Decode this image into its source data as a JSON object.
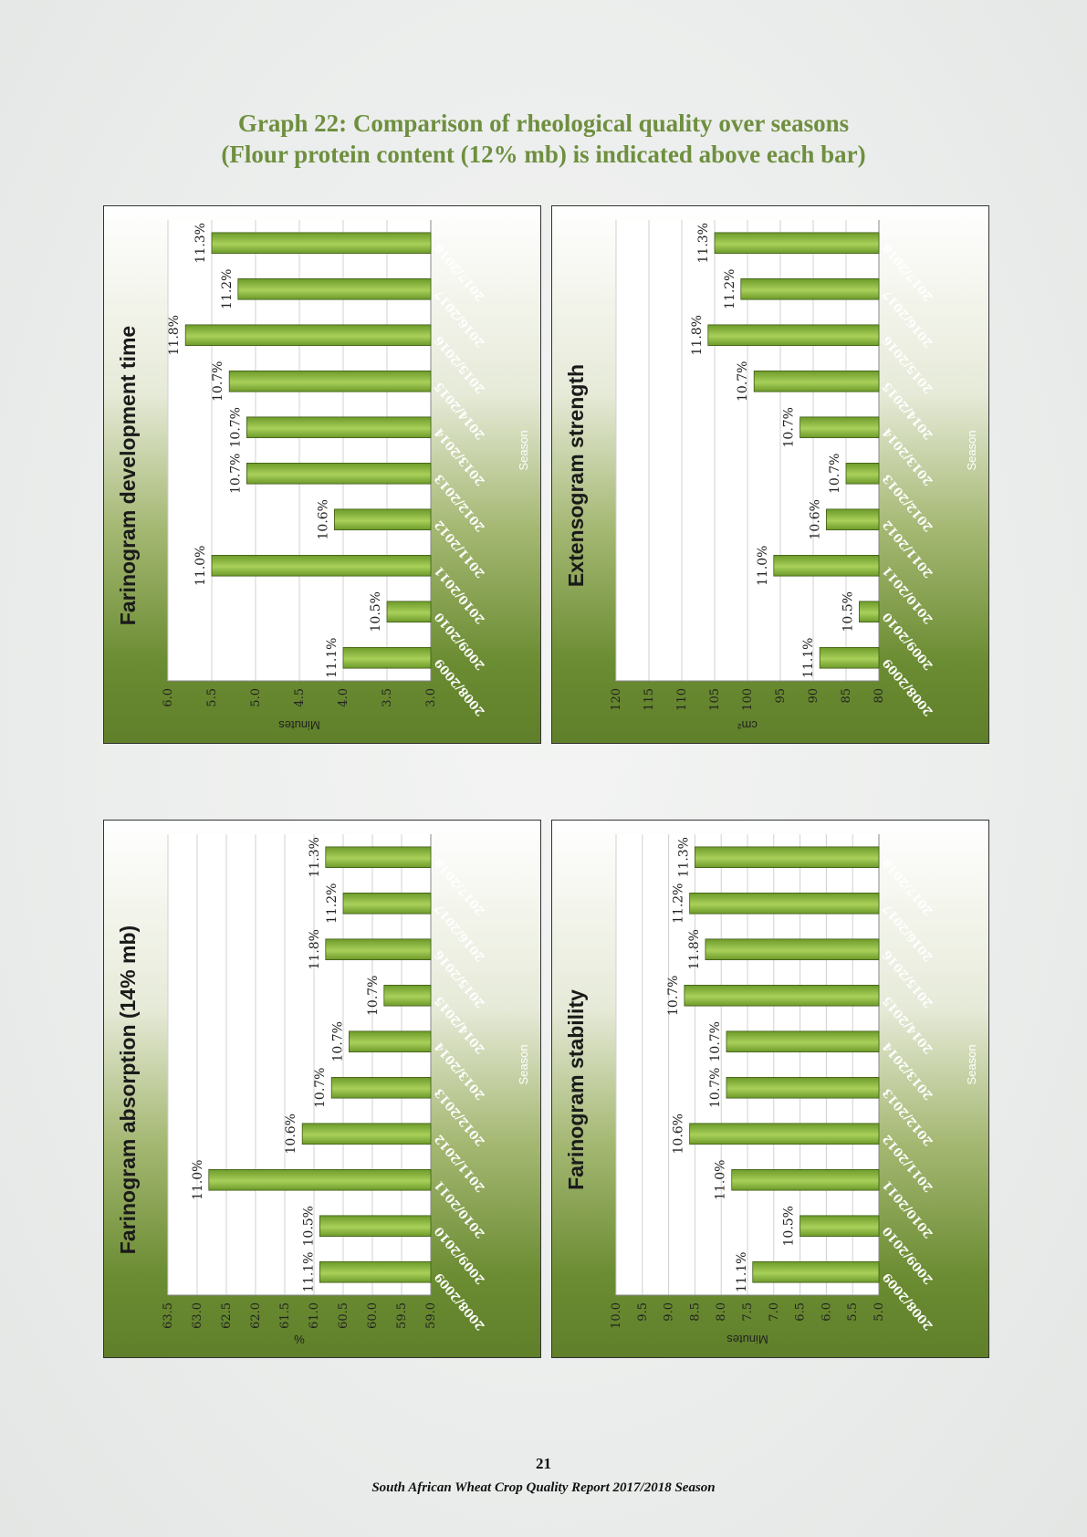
{
  "page": {
    "title_line1": "Graph 22: Comparison of rheological quality over seasons",
    "title_line2": "(Flour protein content (12% mb) is indicated above each bar)",
    "page_number": "21",
    "footer": "South African Wheat Crop Quality Report 2017/2018 Season"
  },
  "colors": {
    "bar": "#6d9a2a",
    "bar_light": "#a8d05a",
    "title": "#6f8f3f"
  },
  "chart_data": [
    {
      "id": "farinogram-development-time",
      "type": "bar",
      "title": "Farinogram development time",
      "ylabel": "Minutes",
      "xlabel": "Season",
      "ylim": [
        3.0,
        6.0
      ],
      "ystep": 0.5,
      "tick_decimals": 1,
      "categories": [
        "2008/2009",
        "2009/2010",
        "2010/2011",
        "2011/2012",
        "2012/2013",
        "2013/2014",
        "2014/2015",
        "2015/2016",
        "2016/2017",
        "2017/2018"
      ],
      "values": [
        4.0,
        3.5,
        5.5,
        4.1,
        5.1,
        5.1,
        5.3,
        5.8,
        5.2,
        5.5
      ],
      "protein_labels": [
        "11.1%",
        "10.5%",
        "11.0%",
        "10.6%",
        "10.7%",
        "10.7%",
        "10.7%",
        "11.8%",
        "11.2%",
        "11.3%"
      ]
    },
    {
      "id": "extensogram-strength",
      "type": "bar",
      "title": "Extensogram strength",
      "ylabel": "cm²",
      "xlabel": "Season",
      "ylim": [
        80,
        120
      ],
      "ystep": 5,
      "tick_decimals": 0,
      "categories": [
        "2008/2009",
        "2009/2010",
        "2010/2011",
        "2011/2012",
        "2012/2013",
        "2013/2014",
        "2014/2015",
        "2015/2016",
        "2016/2017",
        "2017/2018"
      ],
      "values": [
        89,
        83,
        96,
        88,
        85,
        92,
        99,
        106,
        101,
        105
      ],
      "protein_labels": [
        "11.1%",
        "10.5%",
        "11.0%",
        "10.6%",
        "10.7%",
        "10.7%",
        "10.7%",
        "11.8%",
        "11.2%",
        "11.3%"
      ]
    },
    {
      "id": "farinogram-absorption",
      "type": "bar",
      "title": "Farinogram absorption (14% mb)",
      "ylabel": "%",
      "xlabel": "Season",
      "ylim": [
        59.0,
        63.5
      ],
      "ystep": 0.5,
      "tick_decimals": 1,
      "categories": [
        "2008/2009",
        "2009/2010",
        "2010/2011",
        "2011/2012",
        "2012/2013",
        "2013/2014",
        "2014/2015",
        "2015/2016",
        "2016/2017",
        "2017/2018"
      ],
      "values": [
        60.9,
        60.9,
        62.8,
        61.2,
        60.7,
        60.4,
        59.8,
        60.8,
        60.5,
        60.8
      ],
      "protein_labels": [
        "11.1%",
        "10.5%",
        "11.0%",
        "10.6%",
        "10.7%",
        "10.7%",
        "10.7%",
        "11.8%",
        "11.2%",
        "11.3%"
      ]
    },
    {
      "id": "farinogram-stability",
      "type": "bar",
      "title": "Farinogram stability",
      "ylabel": "Minutes",
      "xlabel": "Season",
      "ylim": [
        5.0,
        10.0
      ],
      "ystep": 0.5,
      "tick_decimals": 1,
      "categories": [
        "2008/2009",
        "2009/2010",
        "2010/2011",
        "2011/2012",
        "2012/2013",
        "2013/2014",
        "2014/2015",
        "2015/2016",
        "2016/2017",
        "2017/2018"
      ],
      "values": [
        7.4,
        6.5,
        7.8,
        8.6,
        7.9,
        7.9,
        8.7,
        8.3,
        8.6,
        8.5
      ],
      "protein_labels": [
        "11.1%",
        "10.5%",
        "11.0%",
        "10.6%",
        "10.7%",
        "10.7%",
        "10.7%",
        "11.8%",
        "11.2%",
        "11.3%"
      ]
    }
  ]
}
